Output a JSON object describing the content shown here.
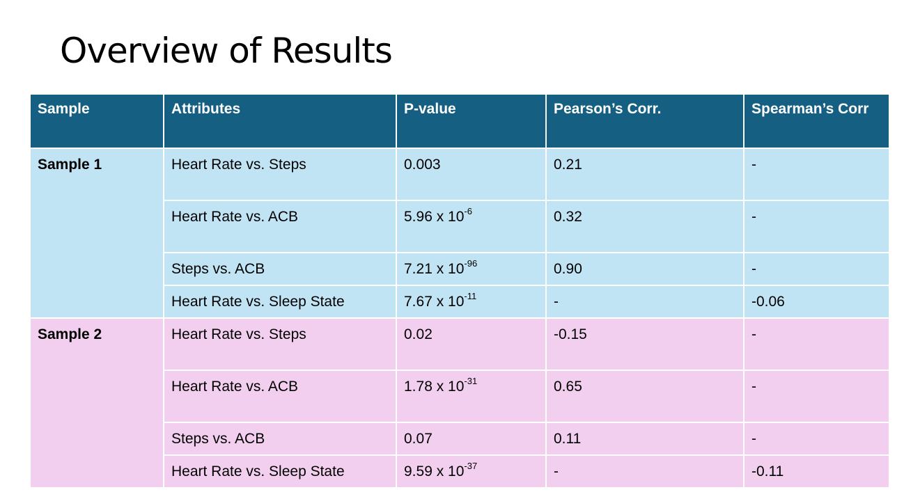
{
  "slide": {
    "title": "Overview of Results"
  },
  "table": {
    "headers": [
      "Sample",
      "Attributes",
      "P-value",
      "Pearson’s Corr.",
      "Spearman’s Corr"
    ],
    "groups": [
      {
        "sample": "Sample 1",
        "rows": [
          {
            "attribute": "Heart Rate vs. Steps",
            "p_base": "0.003",
            "p_exp": "",
            "pearson": "0.21",
            "spearman": "-"
          },
          {
            "attribute": "Heart Rate vs. ACB",
            "p_base": "5.96 x 10",
            "p_exp": "-6",
            "pearson": "0.32",
            "spearman": "-"
          },
          {
            "attribute": "Steps vs. ACB",
            "p_base": "7.21 x 10",
            "p_exp": "-96",
            "pearson": "0.90",
            "spearman": "-"
          },
          {
            "attribute": "Heart Rate vs. Sleep State",
            "p_base": "7.67 x 10",
            "p_exp": "-11",
            "pearson": "-",
            "spearman": "-0.06"
          }
        ]
      },
      {
        "sample": "Sample 2",
        "rows": [
          {
            "attribute": "Heart Rate vs. Steps",
            "p_base": "0.02",
            "p_exp": "",
            "pearson": "-0.15",
            "spearman": "-"
          },
          {
            "attribute": "Heart Rate vs. ACB",
            "p_base": "1.78 x 10",
            "p_exp": "-31",
            "pearson": "0.65",
            "spearman": "-"
          },
          {
            "attribute": "Steps vs. ACB",
            "p_base": "0.07",
            "p_exp": "",
            "pearson": "0.11",
            "spearman": "-"
          },
          {
            "attribute": "Heart Rate vs. Sleep State",
            "p_base": "9.59 x 10",
            "p_exp": "-37",
            "pearson": "-",
            "spearman": "-0.11"
          }
        ]
      }
    ]
  },
  "colors": {
    "header_bg": "#156082",
    "sample1_bg": "#c1e4f5",
    "sample2_bg": "#f2cfee"
  }
}
